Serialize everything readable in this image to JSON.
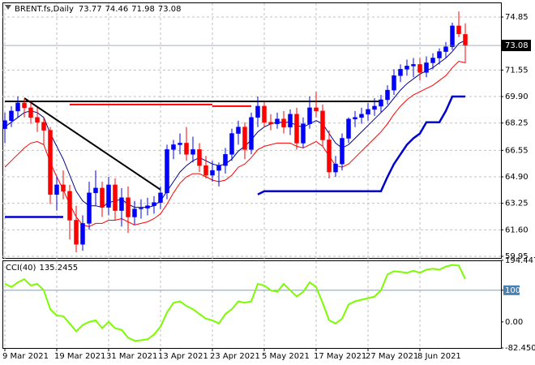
{
  "chart_data": [
    {
      "type": "candlestick",
      "title": "BRENT.fs,Daily",
      "categories": [
        "9 Mar 2021",
        null,
        null,
        null,
        null,
        null,
        null,
        null,
        "19 Mar 2021",
        null,
        null,
        null,
        null,
        null,
        null,
        null,
        "31 Mar 2021",
        null,
        null,
        null,
        null,
        null,
        null,
        null,
        "13 Apr 2021",
        null,
        null,
        null,
        null,
        null,
        null,
        null,
        "23 Apr 2021",
        null,
        null,
        null,
        null,
        null,
        null,
        null,
        "5 May 2021",
        null,
        null,
        null,
        null,
        null,
        null,
        null,
        "17 May 2021",
        null,
        null,
        null,
        null,
        null,
        null,
        null,
        "27 May 2021",
        null,
        null,
        null,
        null,
        null,
        null,
        null,
        "8 Jun 2021",
        null,
        null,
        null,
        null,
        null,
        null,
        null
      ],
      "ohlc": [
        [
          67.9,
          68.9,
          67.0,
          68.4
        ],
        [
          68.4,
          69.3,
          68.0,
          69.0
        ],
        [
          69.0,
          69.9,
          68.6,
          69.5
        ],
        [
          69.5,
          69.8,
          68.6,
          69.2
        ],
        [
          69.2,
          69.6,
          68.2,
          68.6
        ],
        [
          68.6,
          69.2,
          67.7,
          68.3
        ],
        [
          68.3,
          68.6,
          66.9,
          67.8
        ],
        [
          67.8,
          68.0,
          63.2,
          63.8
        ],
        [
          63.8,
          64.9,
          62.8,
          64.4
        ],
        [
          64.4,
          65.3,
          63.5,
          64.0
        ],
        [
          64.0,
          64.4,
          61.0,
          62.2
        ],
        [
          62.2,
          63.1,
          60.2,
          60.7
        ],
        [
          60.7,
          62.5,
          60.3,
          62.0
        ],
        [
          62.0,
          64.6,
          61.6,
          63.9
        ],
        [
          63.9,
          65.3,
          63.1,
          64.2
        ],
        [
          64.2,
          64.6,
          62.4,
          63.0
        ],
        [
          63.0,
          64.9,
          62.5,
          64.4
        ],
        [
          64.4,
          64.8,
          62.2,
          62.8
        ],
        [
          62.8,
          64.2,
          61.8,
          63.6
        ],
        [
          63.6,
          64.3,
          61.4,
          62.4
        ],
        [
          62.4,
          63.4,
          61.9,
          62.9
        ],
        [
          62.9,
          63.5,
          62.3,
          62.95
        ],
        [
          62.95,
          63.6,
          62.5,
          63.1
        ],
        [
          63.1,
          63.7,
          62.6,
          63.3
        ],
        [
          63.3,
          64.3,
          62.9,
          63.9
        ],
        [
          63.9,
          66.9,
          63.5,
          66.6
        ],
        [
          66.6,
          67.2,
          66.0,
          66.9
        ],
        [
          66.9,
          67.6,
          66.3,
          67.0
        ],
        [
          67.0,
          68.0,
          65.9,
          66.3
        ],
        [
          66.3,
          67.4,
          65.8,
          66.6
        ],
        [
          66.6,
          67.0,
          65.2,
          65.6
        ],
        [
          65.6,
          66.2,
          64.8,
          65.0
        ],
        [
          65.0,
          65.9,
          64.6,
          65.3
        ],
        [
          65.3,
          65.8,
          64.3,
          65.6
        ],
        [
          65.6,
          66.7,
          65.1,
          66.3
        ],
        [
          66.3,
          67.9,
          65.9,
          67.6
        ],
        [
          67.6,
          68.4,
          66.9,
          68.0
        ],
        [
          68.0,
          68.3,
          66.0,
          66.6
        ],
        [
          66.6,
          68.9,
          66.3,
          68.6
        ],
        [
          68.6,
          69.9,
          68.0,
          69.3
        ],
        [
          69.3,
          69.6,
          68.0,
          68.3
        ],
        [
          68.3,
          68.8,
          67.8,
          68.2
        ],
        [
          68.2,
          68.9,
          67.9,
          68.5
        ],
        [
          68.5,
          69.0,
          67.6,
          68.0
        ],
        [
          68.0,
          69.1,
          67.5,
          68.8
        ],
        [
          68.8,
          69.2,
          66.6,
          67.0
        ],
        [
          67.0,
          68.6,
          66.7,
          68.2
        ],
        [
          68.2,
          69.9,
          67.9,
          69.2
        ],
        [
          69.2,
          70.2,
          68.6,
          69.0
        ],
        [
          69.0,
          69.4,
          66.8,
          67.2
        ],
        [
          67.2,
          67.8,
          64.8,
          65.2
        ],
        [
          65.2,
          66.2,
          64.9,
          65.7
        ],
        [
          65.7,
          67.6,
          65.3,
          67.3
        ],
        [
          67.3,
          68.6,
          67.0,
          68.5
        ],
        [
          68.5,
          69.0,
          68.0,
          68.6
        ],
        [
          68.6,
          69.2,
          68.2,
          68.8
        ],
        [
          68.8,
          69.5,
          68.4,
          69.1
        ],
        [
          69.1,
          69.8,
          68.7,
          69.3
        ],
        [
          69.3,
          70.0,
          68.9,
          69.7
        ],
        [
          69.7,
          70.6,
          69.4,
          70.3
        ],
        [
          70.3,
          71.6,
          70.0,
          71.2
        ],
        [
          71.2,
          71.9,
          70.8,
          71.6
        ],
        [
          71.6,
          72.2,
          71.2,
          71.8
        ],
        [
          71.8,
          72.3,
          71.1,
          71.9
        ],
        [
          71.9,
          72.3,
          70.9,
          71.4
        ],
        [
          71.4,
          72.4,
          71.1,
          72.0
        ],
        [
          72.0,
          72.6,
          71.6,
          72.3
        ],
        [
          72.3,
          72.9,
          71.9,
          72.7
        ],
        [
          72.7,
          73.3,
          72.3,
          73.0
        ],
        [
          73.0,
          74.5,
          72.8,
          74.3
        ],
        [
          74.3,
          75.2,
          73.6,
          73.8
        ],
        [
          73.77,
          74.46,
          71.98,
          73.08
        ]
      ],
      "up_color": "#0000ff",
      "down_color": "#ff0000",
      "series": [
        {
          "color": "#00008b",
          "values": [
            68.0,
            68.3,
            68.6,
            68.9,
            69.0,
            68.9,
            68.6,
            67.6,
            66.8,
            66.0,
            65.0,
            64.0,
            63.4,
            63.1,
            63.1,
            63.0,
            63.3,
            63.4,
            63.5,
            63.2,
            63.0,
            63.0,
            63.0,
            63.1,
            63.4,
            64.0,
            64.6,
            65.2,
            65.6,
            65.9,
            66.1,
            65.9,
            65.7,
            65.6,
            65.7,
            66.0,
            66.5,
            66.8,
            67.2,
            67.7,
            68.0,
            68.2,
            68.3,
            68.3,
            68.3,
            68.1,
            68.0,
            68.2,
            68.4,
            68.2,
            67.6,
            67.0,
            66.7,
            66.9,
            67.3,
            67.7,
            68.1,
            68.5,
            68.9,
            69.3,
            69.8,
            70.3,
            70.7,
            71.0,
            71.3,
            71.5,
            71.7,
            72.0,
            72.3,
            72.7,
            73.2,
            73.4
          ]
        },
        {
          "color": "#ff0000",
          "values": [
            65.5,
            65.9,
            66.3,
            66.7,
            67.0,
            67.1,
            66.9,
            65.8,
            64.9,
            64.1,
            63.2,
            62.4,
            61.9,
            61.8,
            62.0,
            62.0,
            62.2,
            62.2,
            62.3,
            62.1,
            61.9,
            62.0,
            62.1,
            62.3,
            62.6,
            63.2,
            63.9,
            64.5,
            64.9,
            65.1,
            65.1,
            64.9,
            64.7,
            64.6,
            64.7,
            65.0,
            65.5,
            65.7,
            66.1,
            66.6,
            66.8,
            66.9,
            67.0,
            67.0,
            67.0,
            66.8,
            66.7,
            66.9,
            67.1,
            66.8,
            66.2,
            65.6,
            65.5,
            65.7,
            66.1,
            66.5,
            66.9,
            67.3,
            67.7,
            68.2,
            68.8,
            69.3,
            69.7,
            70.0,
            70.2,
            70.4,
            70.6,
            70.9,
            71.2,
            71.7,
            72.1,
            72.0
          ]
        },
        {
          "color": "#0000cd",
          "thick": true,
          "values": [
            62.4,
            62.4,
            62.4,
            62.4,
            62.4,
            62.4,
            62.4,
            62.4,
            62.4,
            62.4,
            null,
            null,
            null,
            null,
            null,
            null,
            null,
            null,
            null,
            null,
            null,
            null,
            null,
            null,
            null,
            null,
            null,
            null,
            null,
            null,
            null,
            null,
            null,
            null,
            null,
            null,
            null,
            null,
            null,
            63.8,
            64.0,
            64.0,
            64.0,
            64.0,
            64.0,
            64.0,
            64.0,
            64.0,
            64.0,
            64.0,
            64.0,
            64.0,
            64.0,
            64.0,
            64.0,
            64.0,
            64.0,
            64.0,
            64.0,
            64.9,
            65.7,
            66.3,
            66.9,
            67.3,
            67.6,
            68.3,
            68.3,
            68.3,
            69.0,
            69.9,
            69.9,
            69.9
          ]
        }
      ],
      "lines": [
        {
          "color": "#000000",
          "x": [
            0,
            58
          ],
          "y": [
            69.6,
            69.6
          ]
        },
        {
          "color": "#000000",
          "x": [
            3,
            24
          ],
          "y": [
            69.8,
            64.1
          ]
        },
        {
          "color": "#ff0000",
          "x": [
            10,
            32
          ],
          "y": [
            69.4,
            69.4
          ]
        },
        {
          "color": "#ff0000",
          "x": [
            32,
            38
          ],
          "y": [
            69.3,
            69.3
          ]
        }
      ],
      "ylim": [
        59.85,
        75.76
      ],
      "yticks": [
        74.85,
        71.55,
        {
          "value": 69.9,
          "label": "69.90"
        },
        68.25,
        66.55,
        {
          "value": 64.9,
          "label": "64.90"
        },
        63.25,
        {
          "value": 61.6,
          "label": "61.60"
        },
        59.95
      ],
      "grid": true
    },
    {
      "type": "line",
      "title": "CCI(40)",
      "color": "#7cfc00",
      "values": [
        120,
        110,
        125,
        135,
        115,
        120,
        100,
        40,
        20,
        18,
        -5,
        -30,
        -10,
        0,
        5,
        -20,
        0,
        -20,
        -25,
        -50,
        -60,
        -58,
        -55,
        -40,
        -15,
        30,
        60,
        65,
        50,
        40,
        25,
        10,
        5,
        -5,
        25,
        40,
        65,
        60,
        65,
        120,
        115,
        100,
        95,
        120,
        100,
        80,
        95,
        125,
        110,
        60,
        5,
        -5,
        10,
        55,
        65,
        70,
        75,
        80,
        100,
        150,
        160,
        158,
        155,
        162,
        155,
        165,
        168,
        165,
        175,
        180,
        178,
        135.2455
      ],
      "ylim": [
        -82.4501,
        194.4472
      ],
      "yticks": [
        194.4472,
        100,
        {
          "value": 0,
          "label": "0.00"
        },
        -82.4501
      ],
      "level_color": "#4682b4"
    }
  ]
}
